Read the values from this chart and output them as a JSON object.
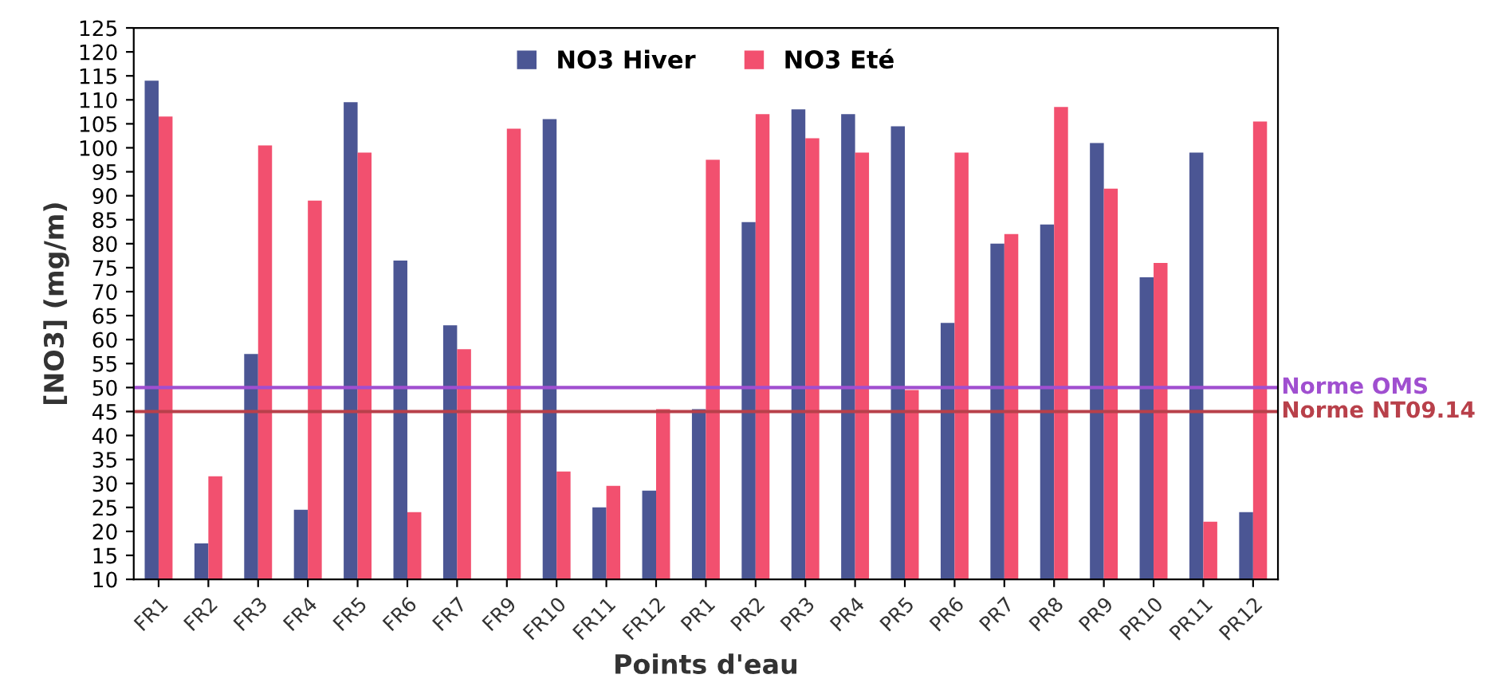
{
  "chart_data": {
    "type": "bar",
    "xlabel": "Points d'eau",
    "ylabel": "[NO3] (mg/m)",
    "categories": [
      "FR1",
      "FR2",
      "FR3",
      "FR4",
      "FR5",
      "FR6",
      "FR7",
      "FR9",
      "FR10",
      "FR11",
      "FR12",
      "PR1",
      "PR2",
      "PR3",
      "PR4",
      "PR5",
      "PR6",
      "PR7",
      "PR8",
      "PR9",
      "PR10",
      "PR11",
      "PR12"
    ],
    "series": [
      {
        "name": "NO3 Hiver",
        "color": "#4b5694",
        "values": [
          114,
          17.5,
          57,
          24.5,
          109.5,
          76.5,
          63,
          null,
          106,
          25,
          28.5,
          45.5,
          84.5,
          108,
          107,
          104.5,
          63.5,
          80,
          84,
          101,
          73,
          99,
          24
        ]
      },
      {
        "name": "NO3 Eté",
        "color": "#f2506f",
        "values": [
          106.5,
          31.5,
          100.5,
          89,
          99,
          24,
          58,
          104,
          32.5,
          29.5,
          45.5,
          97.5,
          107,
          102,
          99,
          49.5,
          99,
          82,
          108.5,
          91.5,
          76,
          22,
          105.5
        ]
      }
    ],
    "ylim": [
      10,
      125
    ],
    "yticks": [
      10,
      15,
      20,
      25,
      30,
      35,
      40,
      45,
      50,
      55,
      60,
      65,
      70,
      75,
      80,
      85,
      90,
      95,
      100,
      105,
      110,
      115,
      120,
      125
    ],
    "ref_lines": [
      {
        "axis": "y",
        "value": 50,
        "label": "Norme OMS",
        "color": "#a04fd0"
      },
      {
        "axis": "y",
        "value": 45,
        "label": "Norme NT09.14",
        "color": "#b8404a"
      }
    ],
    "grid": false,
    "legend": "top"
  }
}
